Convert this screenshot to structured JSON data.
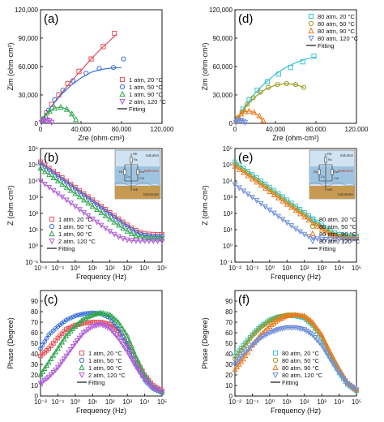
{
  "colors": {
    "s20": "#e8505b",
    "s50": "#3a6fd8",
    "s90": "#2fa84f",
    "s120": "#b05fd6",
    "h20": "#39c2d2",
    "h50": "#9a9a1e",
    "h90": "#f07a1e",
    "h120": "#6f8fdc",
    "fit": "#111111"
  },
  "chart_data": [
    {
      "id": "a",
      "type": "scatter",
      "panel_label": "(a)",
      "xlabel": "Zre (ohm·cm²)",
      "ylabel": "Zim (ohm·cm²)",
      "xlim": [
        0,
        120000
      ],
      "ylim": [
        0,
        120000
      ],
      "xticks": [
        "0",
        "40,000",
        "80,000",
        "120,000"
      ],
      "yticks": [
        "0",
        "30,000",
        "60,000",
        "90,000",
        "120,000"
      ],
      "legend_position": "bottom-right",
      "series": [
        {
          "name": "1 atm, 20 °C",
          "marker": "square",
          "color_key": "s20",
          "x": [
            2000,
            6000,
            11000,
            18000,
            27000,
            38000,
            50000,
            62000,
            73000
          ],
          "y": [
            4000,
            11000,
            20000,
            30000,
            42000,
            55000,
            68000,
            81000,
            95000
          ],
          "fit_x": [
            0,
            10000,
            20000,
            30000,
            40000,
            50000,
            60000,
            70000,
            75000
          ],
          "fit_y": [
            0,
            17000,
            31000,
            44000,
            56000,
            68000,
            79000,
            89000,
            94000
          ]
        },
        {
          "name": "1 atm, 50 °C",
          "marker": "circle",
          "color_key": "s50",
          "x": [
            3000,
            8000,
            14000,
            22000,
            32000,
            45000,
            58000,
            72000,
            82000
          ],
          "y": [
            5000,
            14000,
            25000,
            35000,
            45000,
            53000,
            58000,
            59000,
            68000
          ],
          "fit_x": [
            0,
            10000,
            20000,
            30000,
            40000,
            50000,
            60000,
            70000,
            80000
          ],
          "fit_y": [
            0,
            17000,
            30000,
            40000,
            48000,
            54000,
            57000,
            58500,
            59000
          ]
        },
        {
          "name": "1 atm, 90 °C",
          "marker": "triangle-up",
          "color_key": "s90",
          "x": [
            2000,
            5000,
            9000,
            14000,
            20000,
            26000,
            31000,
            35000
          ],
          "y": [
            3000,
            8000,
            13000,
            16000,
            17000,
            15000,
            10000,
            4000
          ],
          "fit_x": [
            0,
            5000,
            10000,
            15000,
            20000,
            25000,
            30000,
            34000
          ],
          "fit_y": [
            0,
            9000,
            14000,
            16500,
            17000,
            15500,
            11000,
            4000
          ]
        },
        {
          "name": "2 atm, 120 °C",
          "marker": "triangle-down",
          "color_key": "s120",
          "x": [
            1000,
            3000,
            5000,
            7000,
            9000,
            11000
          ],
          "y": [
            1000,
            2500,
            3500,
            3500,
            2500,
            1000
          ],
          "fit_x": [
            0,
            3000,
            6000,
            9000,
            11000
          ],
          "fit_y": [
            0,
            2800,
            3600,
            2600,
            800
          ]
        }
      ],
      "fit_name": "Fitting"
    },
    {
      "id": "b",
      "type": "scatter",
      "panel_label": "(b)",
      "xlabel": "Frequency (Hz)",
      "ylabel": "Z (ohm·cm²)",
      "xscale": "log",
      "yscale": "log",
      "xlim": [
        0.01,
        100000
      ],
      "ylim": [
        0.1,
        1000000
      ],
      "xticks": [
        "10⁻²",
        "10⁻¹",
        "10⁰",
        "10¹",
        "10²",
        "10³",
        "10⁴",
        "10⁵"
      ],
      "yticks": [
        "10⁻¹",
        "10⁰",
        "10¹",
        "10²",
        "10³",
        "10⁴",
        "10⁵",
        "10⁶"
      ],
      "legend_position": "bottom-left",
      "inset_labels": {
        "solution": "Solution",
        "dielectric": "Dielectric",
        "substrate": "Substrate",
        "re": "RE",
        "rs": "Rs",
        "rc": "Rc",
        "rct": "Rct",
        "cc": "Cc",
        "cdl": "Cdl",
        "we": "WE"
      },
      "series": [
        {
          "name": "1 atm, 20 °C",
          "marker": "square",
          "color_key": "s20",
          "plateau": 5,
          "low_f_z": 150000,
          "corner": 30
        },
        {
          "name": "1 atm, 50 °C",
          "marker": "circle",
          "color_key": "s50",
          "plateau": 4,
          "low_f_z": 120000,
          "corner": 20
        },
        {
          "name": "1 atm, 90 °C",
          "marker": "triangle-up",
          "color_key": "s90",
          "plateau": 3,
          "low_f_z": 60000,
          "corner": 15
        },
        {
          "name": "2 atm, 120 °C",
          "marker": "triangle-down",
          "color_key": "s120",
          "plateau": 2,
          "low_f_z": 10000,
          "corner": 6
        }
      ],
      "fit_name": "Fitting"
    },
    {
      "id": "c",
      "type": "scatter",
      "panel_label": "(c)",
      "xlabel": "Frequency (Hz)",
      "ylabel": "Phase (Degree)",
      "xscale": "log",
      "xlim": [
        0.01,
        100000
      ],
      "ylim": [
        0,
        100
      ],
      "xticks": [
        "10⁻²",
        "10⁻¹",
        "10⁰",
        "10¹",
        "10²",
        "10³",
        "10⁴",
        "10⁵"
      ],
      "yticks": [
        "0",
        "10",
        "20",
        "30",
        "40",
        "50",
        "60",
        "70",
        "80",
        "90"
      ],
      "legend_position": "bottom-center",
      "series": [
        {
          "name": "1 atm, 20 °C",
          "marker": "square",
          "color_key": "s20",
          "x": [
            0.01,
            0.03,
            0.1,
            0.3,
            1,
            3,
            10,
            30,
            100,
            300,
            1000,
            3000,
            10000,
            30000,
            100000
          ],
          "y": [
            38,
            45,
            55,
            63,
            67,
            69,
            70,
            70,
            68,
            62,
            50,
            35,
            20,
            10,
            5
          ]
        },
        {
          "name": "1 atm, 50 °C",
          "marker": "circle",
          "color_key": "s50",
          "x": [
            0.01,
            0.03,
            0.1,
            0.3,
            1,
            3,
            10,
            30,
            100,
            300,
            1000,
            3000,
            10000,
            30000,
            100000
          ],
          "y": [
            45,
            58,
            66,
            72,
            76,
            78,
            79,
            78,
            74,
            64,
            48,
            30,
            15,
            7,
            3
          ]
        },
        {
          "name": "1 atm, 90 °C",
          "marker": "triangle-up",
          "color_key": "s90",
          "x": [
            0.01,
            0.03,
            0.1,
            0.3,
            1,
            3,
            10,
            30,
            100,
            300,
            1000,
            3000,
            10000,
            30000,
            100000
          ],
          "y": [
            20,
            32,
            45,
            57,
            66,
            73,
            77,
            79,
            77,
            70,
            57,
            38,
            20,
            9,
            4
          ]
        },
        {
          "name": "2 atm, 120 °C",
          "marker": "triangle-down",
          "color_key": "s120",
          "x": [
            0.01,
            0.03,
            0.1,
            0.3,
            1,
            3,
            10,
            30,
            100,
            300,
            1000,
            3000,
            10000,
            30000,
            100000
          ],
          "y": [
            12,
            18,
            27,
            38,
            50,
            60,
            66,
            68,
            64,
            55,
            42,
            28,
            16,
            8,
            4
          ]
        }
      ],
      "fit_name": "Fitting"
    },
    {
      "id": "d",
      "type": "scatter",
      "panel_label": "(d)",
      "xlabel": "Zre (ohm·cm²)",
      "ylabel": "Zim (ohm·cm²)",
      "xlim": [
        0,
        120000
      ],
      "ylim": [
        0,
        120000
      ],
      "xticks": [
        "0",
        "40,000",
        "80,000",
        "120,000"
      ],
      "yticks": [
        "0",
        "30,000",
        "60,000",
        "90,000",
        "120,000"
      ],
      "legend_position": "top-right",
      "series": [
        {
          "name": "80 atm, 20 °C",
          "marker": "square",
          "color_key": "h20",
          "x": [
            3000,
            8000,
            14000,
            22000,
            32000,
            43000,
            55000,
            67000,
            78000
          ],
          "y": [
            5000,
            15000,
            25000,
            35000,
            44000,
            52000,
            59000,
            65000,
            71000
          ],
          "fit_x": [
            0,
            10000,
            20000,
            30000,
            40000,
            50000,
            60000,
            70000,
            80000
          ],
          "fit_y": [
            0,
            18000,
            32000,
            43000,
            52000,
            59000,
            64000,
            68000,
            70000
          ]
        },
        {
          "name": "80 atm, 50 °C",
          "marker": "circle",
          "color_key": "h50",
          "x": [
            3000,
            7000,
            12000,
            18000,
            25000,
            33000,
            42000,
            51000,
            60000,
            68000
          ],
          "y": [
            5000,
            12000,
            20000,
            27000,
            33000,
            38000,
            41000,
            42000,
            41000,
            38000
          ],
          "fit_x": [
            0,
            10000,
            20000,
            30000,
            40000,
            50000,
            60000,
            68000
          ],
          "fit_y": [
            0,
            17000,
            28000,
            36000,
            40500,
            42000,
            41000,
            38000
          ]
        },
        {
          "name": "80 atm, 90 °C",
          "marker": "triangle-up",
          "color_key": "h90",
          "x": [
            1000,
            3000,
            6000,
            10000,
            14000,
            19000,
            24000,
            28000
          ],
          "y": [
            2000,
            6000,
            10000,
            12500,
            13000,
            11500,
            8000,
            3000
          ],
          "fit_x": [
            0,
            5000,
            10000,
            15000,
            20000,
            25000,
            28000
          ],
          "fit_y": [
            0,
            10000,
            12500,
            13000,
            11000,
            6000,
            1500
          ]
        },
        {
          "name": "80 atm, 120 °C",
          "marker": "triangle-down",
          "color_key": "h120",
          "x": [
            1000,
            2000,
            4000,
            6000,
            8000,
            10000
          ],
          "y": [
            1000,
            2200,
            3000,
            3000,
            2200,
            1000
          ],
          "fit_x": [
            0,
            3000,
            6000,
            9000,
            10500
          ],
          "fit_y": [
            0,
            2700,
            3200,
            2000,
            500
          ]
        }
      ],
      "fit_name": "Fitting"
    },
    {
      "id": "e",
      "type": "scatter",
      "panel_label": "(e)",
      "xlabel": "Frequency (Hz)",
      "ylabel": "Z (ohm·cm²)",
      "xscale": "log",
      "yscale": "log",
      "xlim": [
        0.01,
        100000
      ],
      "ylim": [
        0.1,
        1000000
      ],
      "xticks": [
        "10⁻²",
        "10⁻¹",
        "10⁰",
        "10¹",
        "10²",
        "10³",
        "10⁴",
        "10⁵"
      ],
      "yticks": [
        "10⁻¹",
        "10⁰",
        "10¹",
        "10²",
        "10³",
        "10⁴",
        "10⁵",
        "10⁶"
      ],
      "legend_position": "bottom-right",
      "inset_labels": {
        "solution": "Solution",
        "dielectric": "Dielectric",
        "substrate": "Substrate",
        "re": "RE",
        "rs": "Rs",
        "rc": "Rc",
        "rct": "Rct",
        "cc": "Cc",
        "cdl": "Cdl",
        "we": "WE"
      },
      "series": [
        {
          "name": "80 atm, 20 °C",
          "marker": "square",
          "color_key": "h20",
          "plateau": 4,
          "low_f_z": 150000,
          "corner": 25
        },
        {
          "name": "80 atm, 50 °C",
          "marker": "circle",
          "color_key": "h50",
          "plateau": 3.5,
          "low_f_z": 110000,
          "corner": 20
        },
        {
          "name": "80 atm, 90 °C",
          "marker": "triangle-up",
          "color_key": "h90",
          "plateau": 3,
          "low_f_z": 80000,
          "corner": 15
        },
        {
          "name": "80 atm, 120 °C",
          "marker": "triangle-down",
          "color_key": "h120",
          "plateau": 2.5,
          "low_f_z": 6000,
          "corner": 8
        }
      ],
      "fit_name": "Fitting"
    },
    {
      "id": "f",
      "type": "scatter",
      "panel_label": "(f)",
      "xlabel": "Frequency (Hz)",
      "ylabel": "Phase (Degree)",
      "xscale": "log",
      "xlim": [
        0.01,
        100000
      ],
      "ylim": [
        0,
        100
      ],
      "xticks": [
        "10⁻²",
        "10⁻¹",
        "10⁰",
        "10¹",
        "10²",
        "10³",
        "10⁴",
        "10⁵"
      ],
      "yticks": [
        "0",
        "10",
        "20",
        "30",
        "40",
        "50",
        "60",
        "70",
        "80",
        "90"
      ],
      "legend_position": "bottom-center",
      "series": [
        {
          "name": "80 atm, 20 °C",
          "marker": "square",
          "color_key": "h20",
          "x": [
            0.01,
            0.03,
            0.1,
            0.3,
            1,
            3,
            10,
            30,
            100,
            300,
            1000,
            3000,
            10000,
            30000,
            100000
          ],
          "y": [
            38,
            48,
            58,
            66,
            72,
            75,
            76,
            76,
            74,
            67,
            55,
            38,
            22,
            11,
            5
          ]
        },
        {
          "name": "80 atm, 50 °C",
          "marker": "circle",
          "color_key": "h50",
          "x": [
            0.01,
            0.03,
            0.1,
            0.3,
            1,
            3,
            10,
            30,
            100,
            300,
            1000,
            3000,
            10000,
            30000,
            100000
          ],
          "y": [
            35,
            46,
            57,
            65,
            71,
            75,
            77,
            77,
            75,
            68,
            56,
            40,
            24,
            12,
            5
          ]
        },
        {
          "name": "80 atm, 90 °C",
          "marker": "triangle-up",
          "color_key": "h90",
          "x": [
            0.01,
            0.03,
            0.1,
            0.3,
            1,
            3,
            10,
            30,
            100,
            300,
            1000,
            3000,
            10000,
            30000,
            100000
          ],
          "y": [
            25,
            35,
            48,
            58,
            66,
            72,
            76,
            77,
            76,
            70,
            58,
            42,
            26,
            13,
            6
          ]
        },
        {
          "name": "80 atm, 120 °C",
          "marker": "triangle-down",
          "color_key": "h120",
          "x": [
            0.01,
            0.03,
            0.1,
            0.3,
            1,
            3,
            10,
            30,
            100,
            300,
            1000,
            3000,
            10000,
            30000,
            100000
          ],
          "y": [
            30,
            40,
            48,
            55,
            60,
            63,
            65,
            65,
            63,
            58,
            48,
            35,
            22,
            12,
            6
          ]
        }
      ],
      "fit_name": "Fitting"
    }
  ]
}
